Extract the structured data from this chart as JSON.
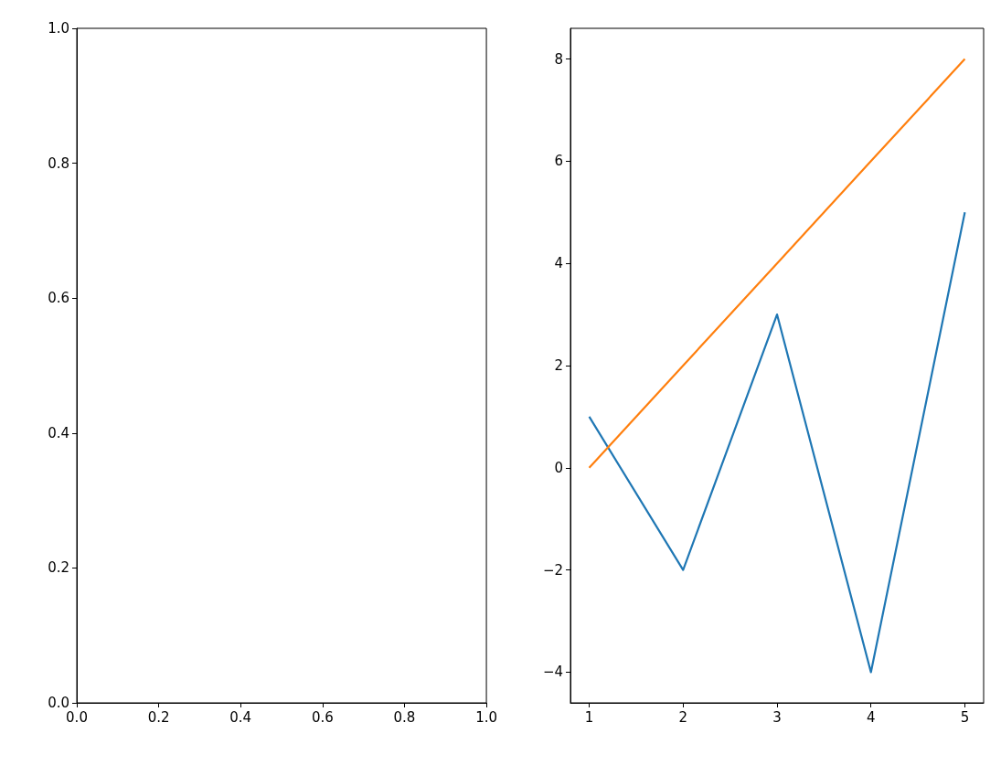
{
  "chart_data": [
    {
      "type": "line",
      "xlim": [
        0,
        1
      ],
      "ylim": [
        0,
        1
      ],
      "xticks": [
        {
          "value": 0,
          "label": "0.0"
        },
        {
          "value": 0.2,
          "label": "0.2"
        },
        {
          "value": 0.4,
          "label": "0.4"
        },
        {
          "value": 0.6,
          "label": "0.6"
        },
        {
          "value": 0.8,
          "label": "0.8"
        },
        {
          "value": 1,
          "label": "1.0"
        }
      ],
      "yticks": [
        {
          "value": 0,
          "label": "0.0"
        },
        {
          "value": 0.2,
          "label": "0.2"
        },
        {
          "value": 0.4,
          "label": "0.4"
        },
        {
          "value": 0.6,
          "label": "0.6"
        },
        {
          "value": 0.8,
          "label": "0.8"
        },
        {
          "value": 1,
          "label": "1.0"
        }
      ]
    },
    {
      "type": "line",
      "x": [
        1,
        2,
        3,
        4,
        5
      ],
      "xlim": [
        0.8,
        5.2
      ],
      "ylim": [
        -4.6,
        8.6
      ],
      "xticks": [
        1,
        2,
        3,
        4,
        5
      ],
      "yticks": [
        {
          "value": -4,
          "label": "−4"
        },
        {
          "value": -2,
          "label": "−2"
        },
        0,
        2,
        4,
        6,
        8
      ],
      "series": [
        {
          "color": "#1f77b4",
          "values": [
            1,
            -2,
            3,
            -4,
            5
          ]
        },
        {
          "color": "#ff7f0e",
          "values": [
            0,
            2,
            4,
            6,
            8
          ]
        }
      ]
    }
  ]
}
